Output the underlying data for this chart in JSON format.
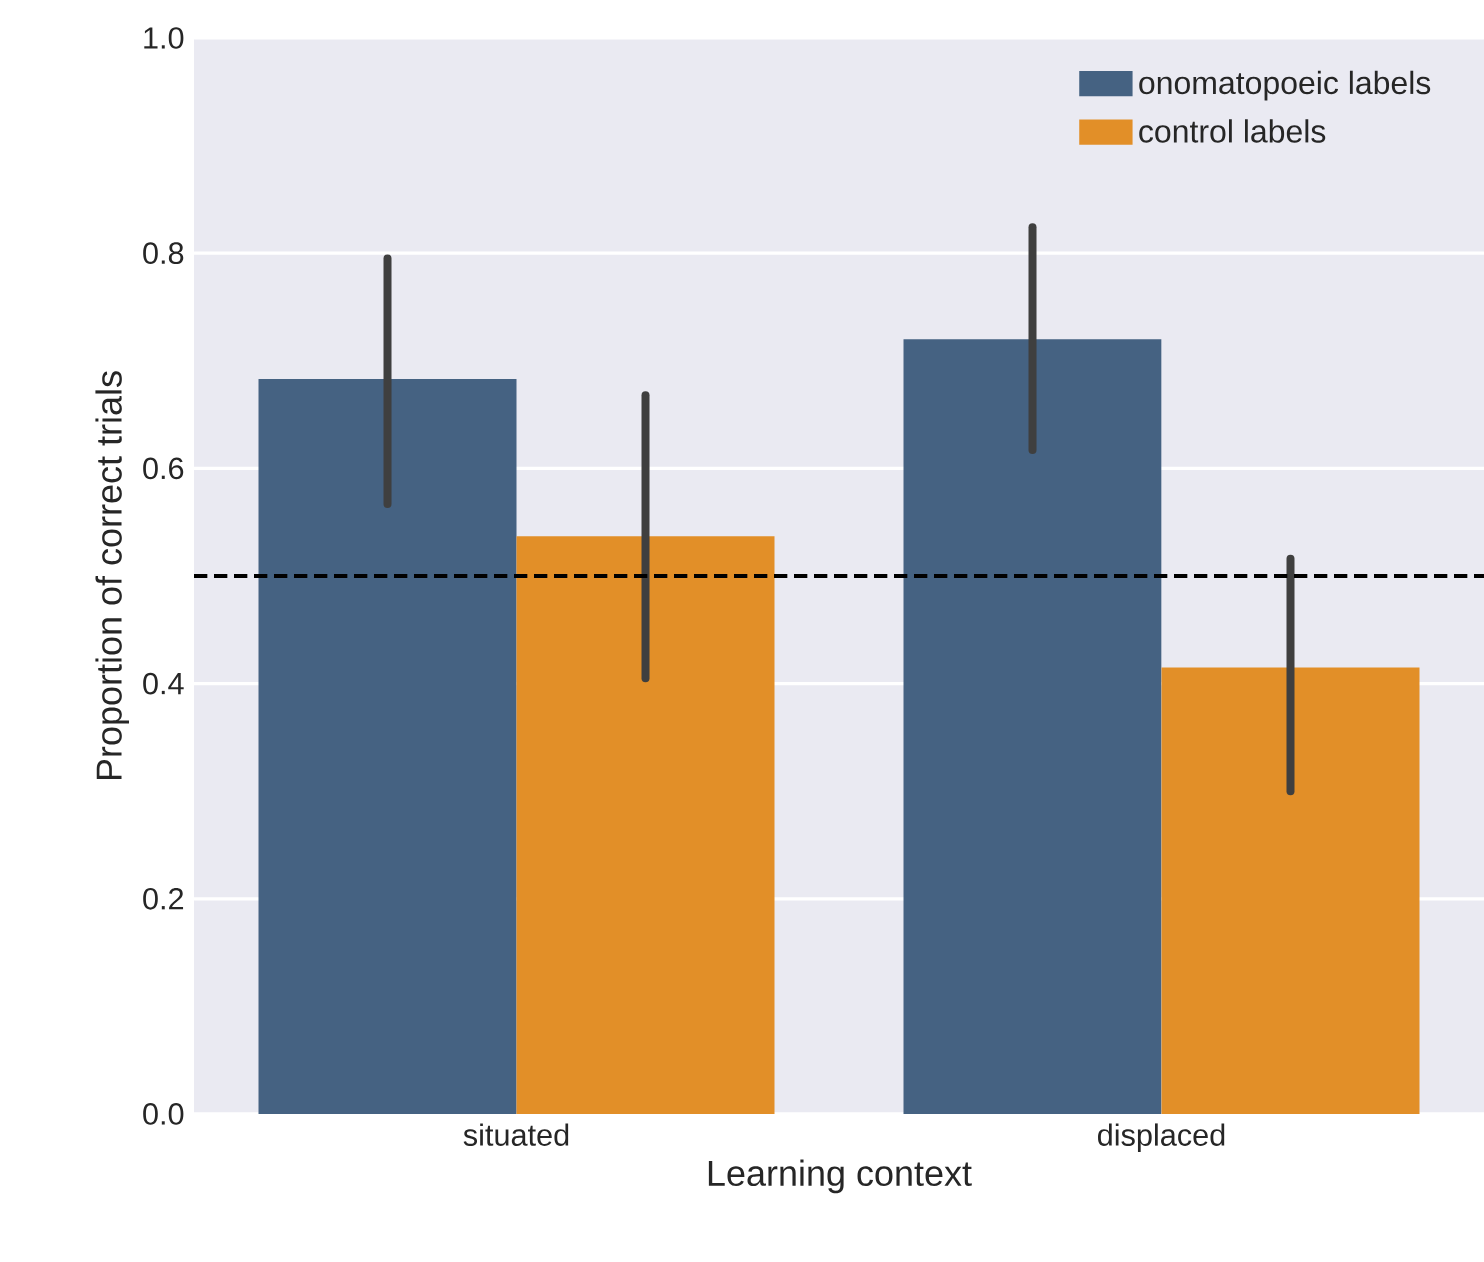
{
  "chart_data": {
    "type": "bar",
    "xlabel": "Learning context",
    "ylabel": "Proportion of correct trials",
    "categories": [
      "situated",
      "displaced"
    ],
    "series": [
      {
        "name": "onomatopoeic labels",
        "color": "#456282",
        "values": [
          0.683,
          0.72
        ],
        "errors": [
          [
            0.567,
            0.795
          ],
          [
            0.617,
            0.824
          ]
        ]
      },
      {
        "name": "control labels",
        "color": "#e28f28",
        "values": [
          0.537,
          0.415
        ],
        "errors": [
          [
            0.405,
            0.668
          ],
          [
            0.3,
            0.516
          ]
        ]
      }
    ],
    "ylim": [
      0,
      1
    ],
    "yticks": [
      {
        "value": 0,
        "label": "0.0"
      },
      0.2,
      0.4,
      0.6,
      0.8,
      {
        "value": 1,
        "label": "1.0"
      }
    ],
    "ref_lines": [
      {
        "axis": "y",
        "value": 0.5,
        "color": "#000000",
        "line_style": "dashed"
      }
    ],
    "grid": "y",
    "legend": "top right"
  }
}
